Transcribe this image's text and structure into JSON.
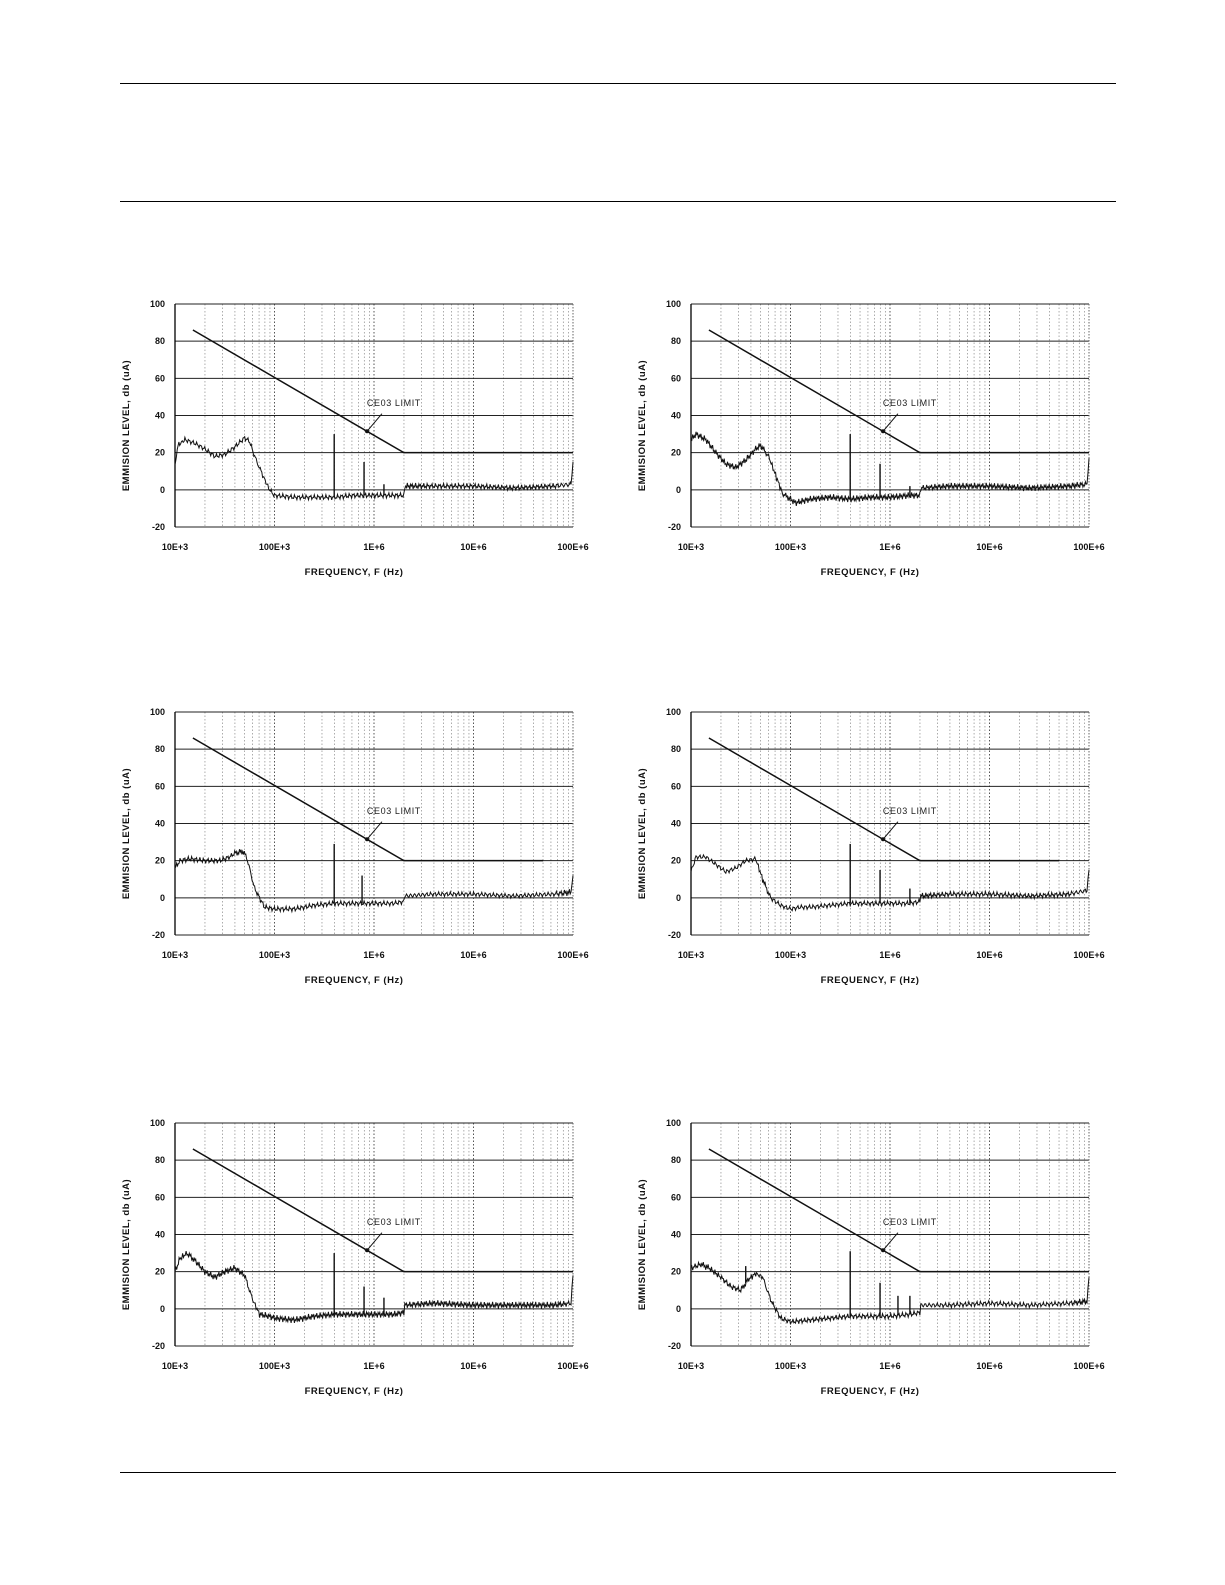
{
  "chart_data": [
    {
      "type": "line",
      "title": "",
      "xlabel": "FREQUENCY, F (Hz)",
      "ylabel": "EMMISION LEVEL, db (uA)",
      "xscale": "log",
      "xlim": [
        10000,
        100000000
      ],
      "ylim": [
        -20,
        100
      ],
      "xticks": [
        "10E+3",
        "100E+3",
        "1E+6",
        "10E+6",
        "100E+6"
      ],
      "yticks": [
        "100",
        "80",
        "60",
        "40",
        "20",
        "0",
        "-20"
      ],
      "grid": true,
      "annotation": "CE03 LIMIT",
      "series": [
        {
          "name": "CE03 LIMIT",
          "log10_f": [
            4.18,
            6.3,
            8.0
          ],
          "values": [
            86,
            20,
            20
          ]
        },
        {
          "name": "Emission",
          "log10_f": [
            4.0,
            4.03,
            4.1,
            4.2,
            4.3,
            4.4,
            4.5,
            4.6,
            4.7,
            4.75,
            4.8,
            4.88,
            4.95,
            5.0,
            5.2,
            5.4,
            5.6,
            5.8,
            6.0,
            6.2,
            6.3,
            6.31,
            6.6,
            7.0,
            7.4,
            7.8,
            7.98,
            8.0
          ],
          "values": [
            14,
            24,
            27,
            25,
            22,
            18,
            19,
            23,
            28,
            26,
            18,
            8,
            0,
            -3,
            -4,
            -4,
            -4,
            -3,
            -3,
            -3,
            -3,
            2,
            2,
            2,
            1,
            2,
            3,
            15
          ],
          "spikes": [
            [
              5.6,
              30
            ],
            [
              5.9,
              15
            ],
            [
              6.1,
              3
            ]
          ]
        }
      ]
    },
    {
      "type": "line",
      "title": "",
      "xlabel": "FREQUENCY, F (Hz)",
      "ylabel": "EMMISION LEVEL, db (uA)",
      "xscale": "log",
      "xlim": [
        10000,
        100000000
      ],
      "ylim": [
        -20,
        100
      ],
      "xticks": [
        "10E+3",
        "100E+3",
        "1E+6",
        "10E+6",
        "100E+6"
      ],
      "yticks": [
        "100",
        "80",
        "60",
        "40",
        "20",
        "0",
        "-20"
      ],
      "grid": true,
      "annotation": "CE03 LIMIT",
      "series": [
        {
          "name": "CE03 LIMIT",
          "log10_f": [
            4.18,
            6.3,
            8.0
          ],
          "values": [
            86,
            20,
            20
          ]
        },
        {
          "name": "Emission",
          "log10_f": [
            4.0,
            4.05,
            4.15,
            4.25,
            4.35,
            4.45,
            4.55,
            4.65,
            4.7,
            4.78,
            4.85,
            4.92,
            5.0,
            5.05,
            5.2,
            5.4,
            5.6,
            5.8,
            6.0,
            6.2,
            6.3,
            6.31,
            6.6,
            7.0,
            7.4,
            7.8,
            7.98,
            8.0
          ],
          "values": [
            27,
            30,
            27,
            20,
            14,
            12,
            16,
            22,
            24,
            18,
            8,
            -2,
            -5,
            -7,
            -5,
            -4,
            -5,
            -4,
            -4,
            -3,
            -3,
            1,
            2,
            2,
            1,
            2,
            3,
            17
          ],
          "spikes": [
            [
              5.6,
              30
            ],
            [
              5.9,
              14
            ],
            [
              6.2,
              2
            ]
          ]
        }
      ]
    },
    {
      "type": "line",
      "title": "",
      "xlabel": "FREQUENCY, F (Hz)",
      "ylabel": "EMMISION LEVEL, db (uA)",
      "xscale": "log",
      "xlim": [
        10000,
        100000000
      ],
      "ylim": [
        -20,
        100
      ],
      "xticks": [
        "10E+3",
        "100E+3",
        "1E+6",
        "10E+6",
        "100E+6"
      ],
      "yticks": [
        "100",
        "80",
        "60",
        "40",
        "20",
        "0",
        "-20"
      ],
      "grid": true,
      "annotation": "CE03 LIMIT",
      "series": [
        {
          "name": "CE03 LIMIT",
          "log10_f": [
            4.18,
            6.3,
            7.7
          ],
          "values": [
            86,
            20,
            20
          ]
        },
        {
          "name": "Emission",
          "log10_f": [
            4.0,
            4.05,
            4.15,
            4.3,
            4.45,
            4.55,
            4.6,
            4.68,
            4.72,
            4.8,
            4.9,
            5.0,
            5.2,
            5.4,
            5.6,
            5.8,
            6.0,
            6.2,
            6.3,
            6.31,
            6.6,
            7.0,
            7.4,
            7.8,
            7.98,
            8.0
          ],
          "values": [
            16,
            20,
            21,
            20,
            20,
            22,
            24,
            25,
            22,
            5,
            -5,
            -6,
            -6,
            -4,
            -3,
            -3,
            -3,
            -3,
            -2,
            1,
            2,
            2,
            1,
            2,
            3,
            12
          ],
          "spikes": [
            [
              5.6,
              29
            ],
            [
              5.88,
              12
            ]
          ]
        }
      ]
    },
    {
      "type": "line",
      "title": "",
      "xlabel": "FREQUENCY, F (Hz)",
      "ylabel": "EMMISION LEVEL, db (uA)",
      "xscale": "log",
      "xlim": [
        10000,
        100000000
      ],
      "ylim": [
        -20,
        100
      ],
      "xticks": [
        "10E+3",
        "100E+3",
        "1E+6",
        "10E+6",
        "100E+6"
      ],
      "yticks": [
        "100",
        "80",
        "60",
        "40",
        "20",
        "0",
        "-20"
      ],
      "grid": true,
      "annotation": "CE03 LIMIT",
      "series": [
        {
          "name": "CE03 LIMIT",
          "log10_f": [
            4.18,
            6.3,
            7.7
          ],
          "values": [
            86,
            20,
            20
          ]
        },
        {
          "name": "Emission",
          "log10_f": [
            4.0,
            4.05,
            4.15,
            4.25,
            4.35,
            4.45,
            4.55,
            4.65,
            4.72,
            4.8,
            4.9,
            5.0,
            5.1,
            5.2,
            5.4,
            5.6,
            5.8,
            6.0,
            6.2,
            6.3,
            6.31,
            6.6,
            7.0,
            7.4,
            7.8,
            7.98,
            8.0
          ],
          "values": [
            14,
            22,
            22,
            18,
            14,
            16,
            20,
            21,
            10,
            0,
            -4,
            -6,
            -5,
            -5,
            -4,
            -3,
            -3,
            -3,
            -3,
            -2,
            1,
            2,
            2,
            1,
            2,
            4,
            15
          ],
          "spikes": [
            [
              5.6,
              29
            ],
            [
              5.9,
              15
            ],
            [
              6.2,
              5
            ]
          ]
        }
      ]
    },
    {
      "type": "line",
      "title": "",
      "xlabel": "FREQUENCY, F (Hz)",
      "ylabel": "EMMISION LEVEL, db (uA)",
      "xscale": "log",
      "xlim": [
        10000,
        100000000
      ],
      "ylim": [
        -20,
        100
      ],
      "xticks": [
        "10E+3",
        "100E+3",
        "1E+6",
        "10E+6",
        "100E+6"
      ],
      "yticks": [
        "100",
        "80",
        "60",
        "40",
        "20",
        "0",
        "-20"
      ],
      "grid": true,
      "annotation": "CE03 LIMIT",
      "series": [
        {
          "name": "CE03 LIMIT",
          "log10_f": [
            4.18,
            6.3,
            8.0
          ],
          "values": [
            86,
            20,
            20
          ]
        },
        {
          "name": "Emission",
          "log10_f": [
            4.0,
            4.05,
            4.12,
            4.2,
            4.3,
            4.4,
            4.5,
            4.6,
            4.7,
            4.78,
            4.85,
            4.95,
            5.0,
            5.2,
            5.4,
            5.6,
            5.8,
            6.0,
            6.2,
            6.3,
            6.31,
            6.6,
            7.0,
            7.4,
            7.8,
            7.98,
            8.0
          ],
          "values": [
            20,
            27,
            30,
            26,
            20,
            17,
            20,
            22,
            18,
            5,
            -3,
            -4,
            -5,
            -6,
            -4,
            -3,
            -3,
            -3,
            -3,
            -2,
            2,
            3,
            2,
            2,
            2,
            3,
            18
          ],
          "spikes": [
            [
              5.6,
              30
            ],
            [
              5.9,
              12
            ],
            [
              6.1,
              6
            ]
          ]
        }
      ]
    },
    {
      "type": "line",
      "title": "",
      "xlabel": "FREQUENCY, F (Hz)",
      "ylabel": "EMMISION LEVEL, db (uA)",
      "xscale": "log",
      "xlim": [
        10000,
        100000000
      ],
      "ylim": [
        -20,
        100
      ],
      "xticks": [
        "10E+3",
        "100E+3",
        "1E+6",
        "10E+6",
        "100E+6"
      ],
      "yticks": [
        "100",
        "80",
        "60",
        "40",
        "20",
        "0",
        "-20"
      ],
      "grid": true,
      "annotation": "CE03 LIMIT",
      "series": [
        {
          "name": "CE03 LIMIT",
          "log10_f": [
            4.18,
            6.3,
            8.0
          ],
          "values": [
            86,
            20,
            20
          ]
        },
        {
          "name": "Emission",
          "log10_f": [
            4.0,
            4.1,
            4.18,
            4.3,
            4.4,
            4.5,
            4.58,
            4.65,
            4.72,
            4.8,
            4.9,
            5.0,
            5.2,
            5.4,
            5.6,
            5.8,
            6.0,
            6.2,
            6.3,
            6.31,
            6.6,
            7.0,
            7.4,
            7.8,
            7.98,
            8.0
          ],
          "values": [
            22,
            24,
            22,
            17,
            12,
            10,
            16,
            19,
            17,
            5,
            -5,
            -7,
            -6,
            -5,
            -4,
            -4,
            -4,
            -3,
            -2,
            2,
            2,
            3,
            2,
            3,
            4,
            17
          ],
          "spikes": [
            [
              5.6,
              31
            ],
            [
              5.9,
              14
            ],
            [
              6.08,
              7
            ],
            [
              6.2,
              7
            ],
            [
              4.55,
              23
            ]
          ]
        }
      ]
    }
  ]
}
